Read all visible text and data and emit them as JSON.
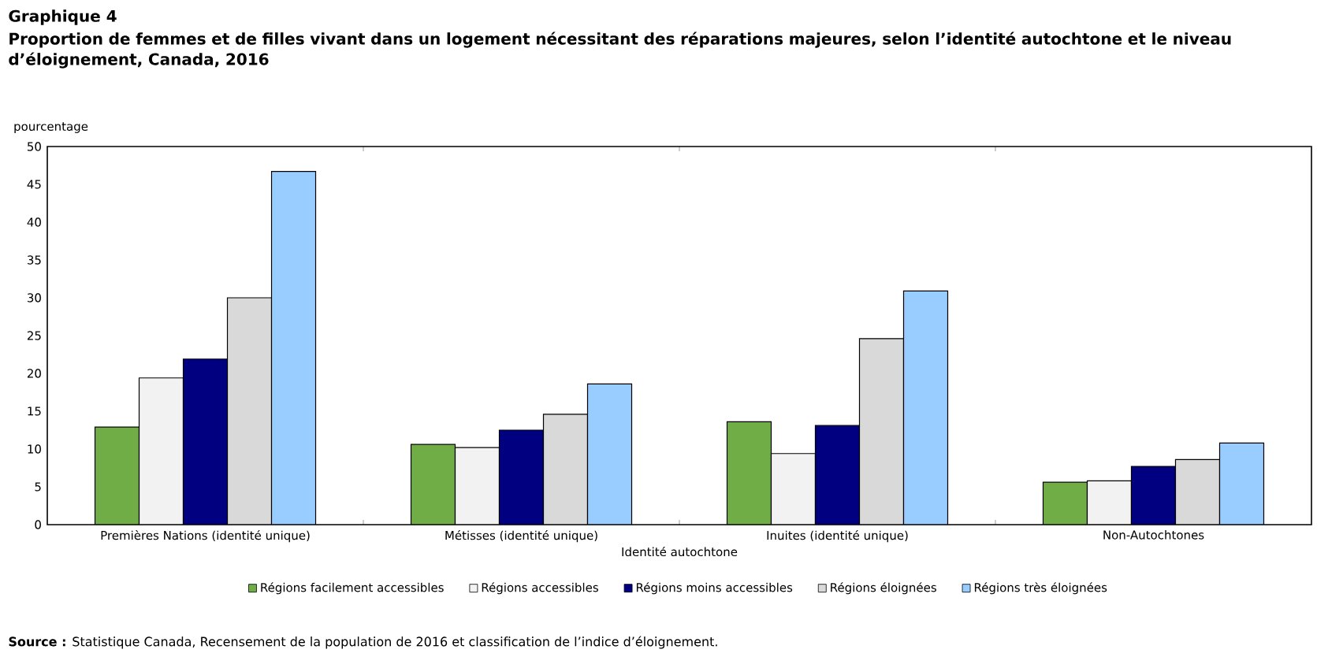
{
  "chart_data": {
    "type": "bar",
    "title": "Graphique 4",
    "subtitle": "Proportion de femmes et de filles vivant dans un logement nécessitant des réparations majeures, selon l’identité autochtone et le niveau d’éloignement, Canada, 2016",
    "ylabel": "pourcentage",
    "xlabel": "Identité autochtone",
    "categories": [
      "Premières Nations (identité unique)",
      "Métisses (identité unique)",
      "Inuites (identité unique)",
      "Non-Autochtones"
    ],
    "series": [
      {
        "name": "Régions facilement accessibles",
        "color": "#70ad47",
        "values": [
          12.9,
          10.6,
          13.6,
          5.6
        ]
      },
      {
        "name": "Régions accessibles",
        "color": "#f2f2f2",
        "values": [
          19.4,
          10.2,
          9.4,
          5.8
        ]
      },
      {
        "name": "Régions moins accessibles",
        "color": "#000080",
        "values": [
          21.9,
          12.5,
          13.1,
          7.7
        ]
      },
      {
        "name": "Régions éloignées",
        "color": "#d9d9d9",
        "values": [
          30.0,
          14.6,
          24.6,
          8.6
        ]
      },
      {
        "name": "Régions très éloignées",
        "color": "#99ccff",
        "values": [
          46.7,
          18.6,
          30.9,
          10.8
        ]
      }
    ],
    "ylim": [
      0,
      50
    ],
    "yticks": [
      0,
      5,
      10,
      15,
      20,
      25,
      30,
      35,
      40,
      45,
      50
    ],
    "legend": "bottom",
    "annotations": [
      "**Source :** Statistique Canada, Recensement de la population de 2016 et classification de l’indice d’éloignement."
    ]
  }
}
